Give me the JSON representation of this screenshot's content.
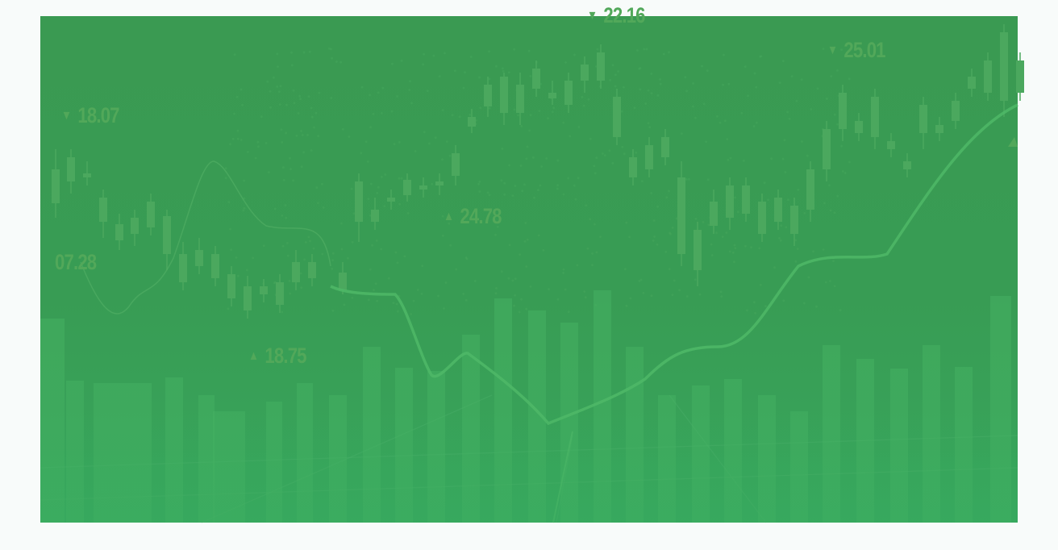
{
  "hero": {
    "colors": {
      "background": "#389c54",
      "candles": "#4ba85e",
      "bars": "#45b063",
      "line": "#4fb867",
      "labels": "#52a85a",
      "page": "#f8fbfa"
    },
    "price_labels": [
      {
        "direction": "down",
        "icon": "triangle-down-icon",
        "value": "18.07"
      },
      {
        "direction": "none",
        "icon": "",
        "value": "07.28"
      },
      {
        "direction": "up",
        "icon": "triangle-up-icon",
        "value": "18.75"
      },
      {
        "direction": "up",
        "icon": "triangle-up-icon",
        "value": "24.78"
      },
      {
        "direction": "down",
        "icon": "triangle-down-icon",
        "value": "22.16"
      },
      {
        "direction": "down",
        "icon": "triangle-down-icon",
        "value": "25.01"
      }
    ]
  }
}
